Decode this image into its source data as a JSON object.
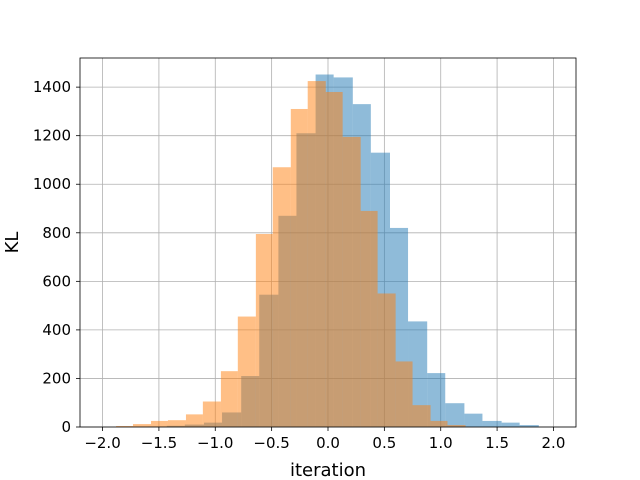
{
  "chart_data": {
    "type": "histogram",
    "xlabel": "iteration",
    "ylabel": "KL",
    "xlim": [
      -2.2,
      2.2
    ],
    "ylim": [
      0,
      1520
    ],
    "xticks": [
      -2.0,
      -1.5,
      -1.0,
      -0.5,
      0.0,
      0.5,
      1.0,
      1.5,
      2.0
    ],
    "xtick_labels": [
      "−2.0",
      "−1.5",
      "−1.0",
      "−0.5",
      "0.0",
      "0.5",
      "1.0",
      "1.5",
      "2.0"
    ],
    "yticks": [
      0,
      200,
      400,
      600,
      800,
      1000,
      1200,
      1400
    ],
    "ytick_labels": [
      "0",
      "200",
      "400",
      "600",
      "800",
      "1000",
      "1200",
      "1400"
    ],
    "grid": true,
    "series": [
      {
        "color": "#1f77b4",
        "alpha": 0.5,
        "bins": [
          [
            -1.6,
            -1.43,
            2
          ],
          [
            -1.43,
            -1.27,
            5
          ],
          [
            -1.27,
            -1.1,
            10
          ],
          [
            -1.1,
            -0.94,
            18
          ],
          [
            -0.94,
            -0.77,
            60
          ],
          [
            -0.77,
            -0.61,
            210
          ],
          [
            -0.61,
            -0.44,
            545
          ],
          [
            -0.44,
            -0.28,
            870
          ],
          [
            -0.28,
            -0.11,
            1210
          ],
          [
            -0.11,
            0.05,
            1452
          ],
          [
            0.05,
            0.22,
            1440
          ],
          [
            0.22,
            0.38,
            1330
          ],
          [
            0.38,
            0.55,
            1130
          ],
          [
            0.55,
            0.71,
            820
          ],
          [
            0.71,
            0.88,
            435
          ],
          [
            0.88,
            1.04,
            222
          ],
          [
            1.04,
            1.21,
            98
          ],
          [
            1.21,
            1.37,
            55
          ],
          [
            1.37,
            1.54,
            25
          ],
          [
            1.54,
            1.7,
            18
          ],
          [
            1.7,
            1.87,
            8
          ]
        ]
      },
      {
        "color": "#ff7f0e",
        "alpha": 0.5,
        "bins": [
          [
            -1.88,
            -1.73,
            4
          ],
          [
            -1.73,
            -1.57,
            12
          ],
          [
            -1.57,
            -1.42,
            25
          ],
          [
            -1.42,
            -1.26,
            28
          ],
          [
            -1.26,
            -1.11,
            52
          ],
          [
            -1.11,
            -0.95,
            105
          ],
          [
            -0.95,
            -0.8,
            230
          ],
          [
            -0.8,
            -0.64,
            455
          ],
          [
            -0.64,
            -0.49,
            795
          ],
          [
            -0.49,
            -0.33,
            1070
          ],
          [
            -0.33,
            -0.18,
            1310
          ],
          [
            -0.18,
            -0.02,
            1425
          ],
          [
            -0.02,
            0.13,
            1380
          ],
          [
            0.13,
            0.29,
            1195
          ],
          [
            0.29,
            0.44,
            890
          ],
          [
            0.44,
            0.6,
            550
          ],
          [
            0.6,
            0.75,
            270
          ],
          [
            0.75,
            0.91,
            90
          ],
          [
            0.91,
            1.06,
            25
          ],
          [
            1.06,
            1.22,
            8
          ]
        ]
      }
    ]
  }
}
